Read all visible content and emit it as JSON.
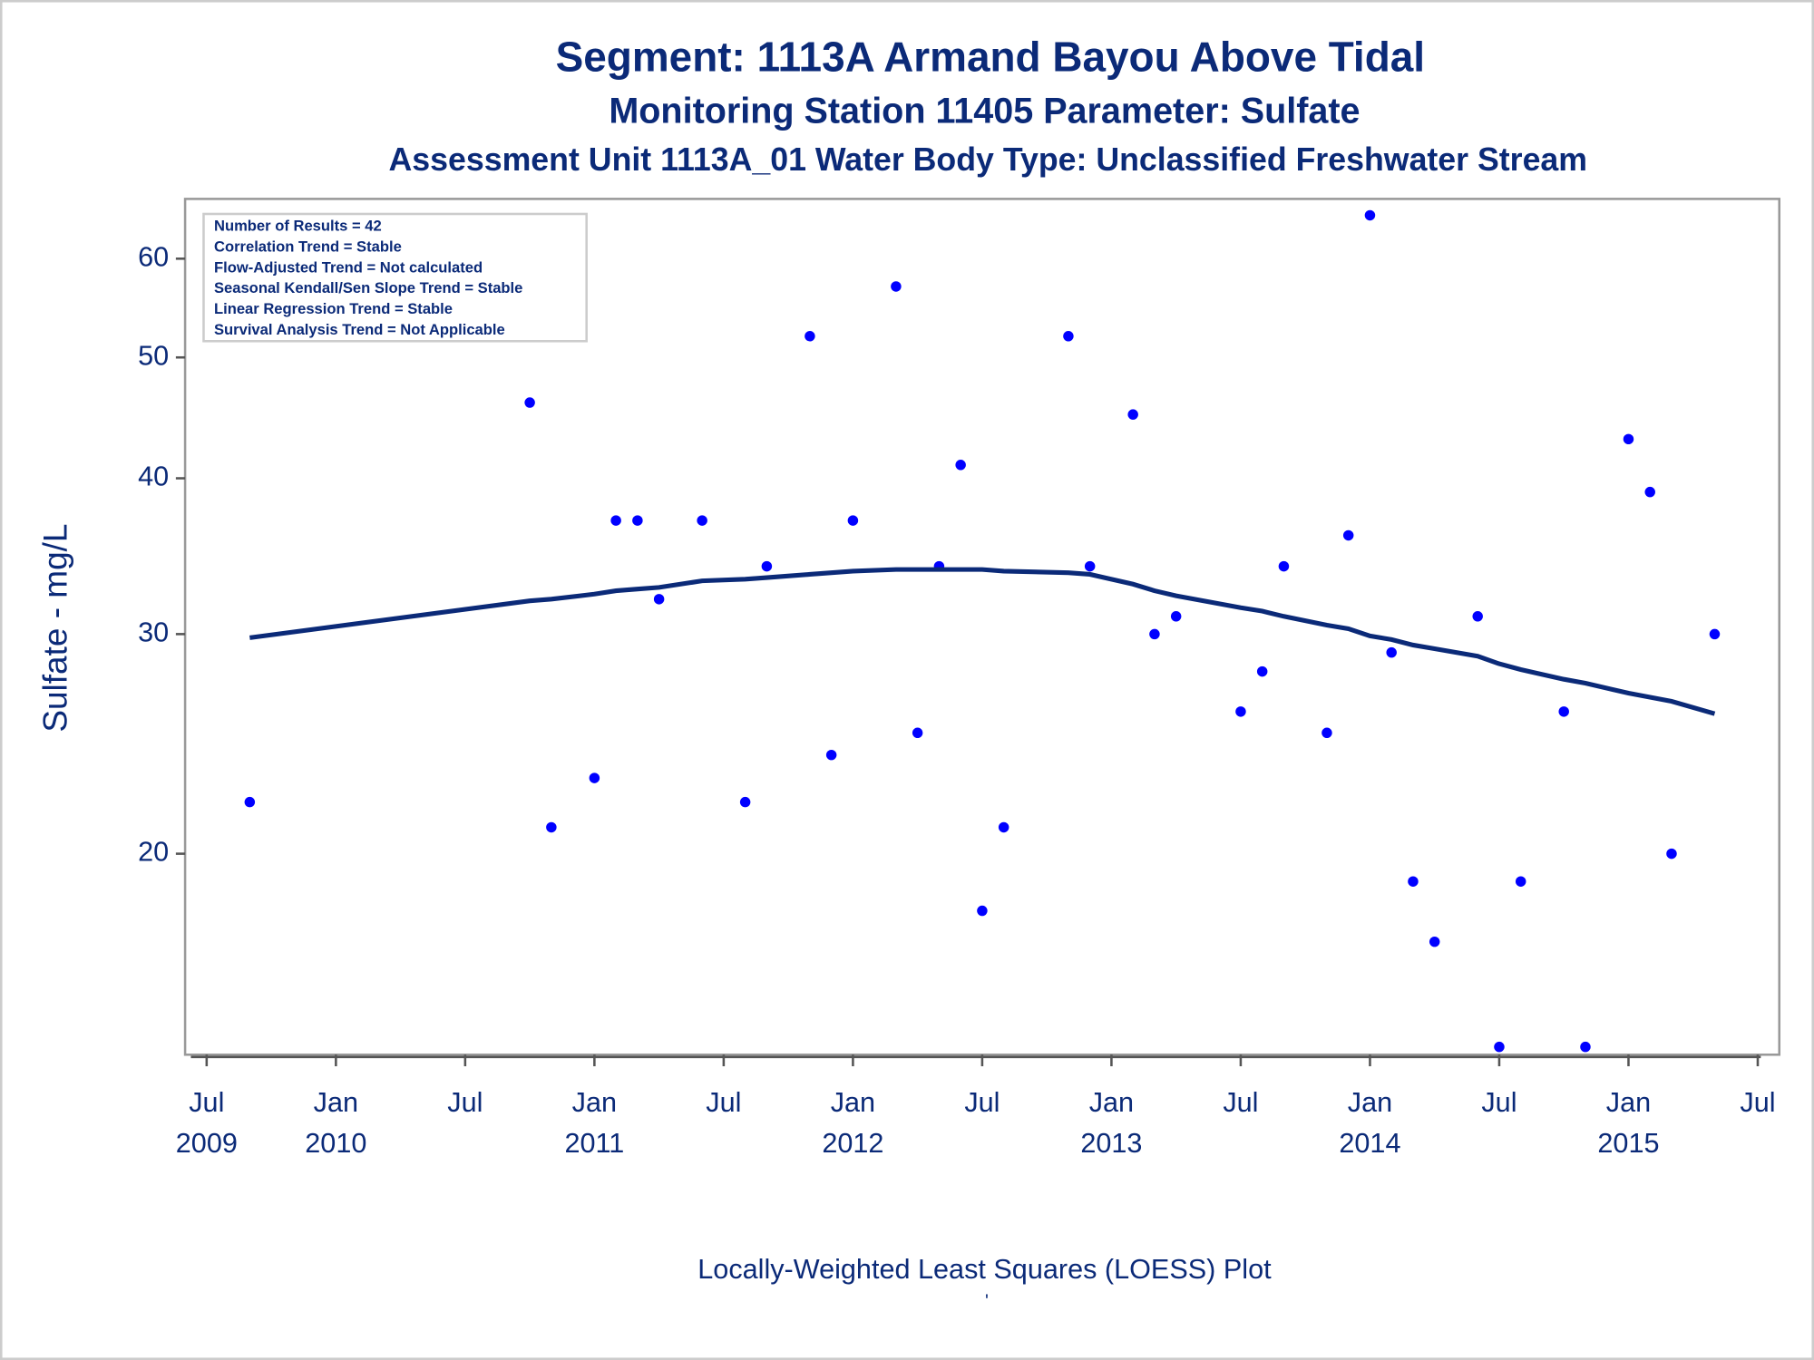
{
  "chart_data": {
    "type": "scatter",
    "title": "Segment: 1113A  Armand Bayou Above Tidal",
    "subtitle": "Monitoring Station 11405 Parameter: Sulfate",
    "subtitle2": "Assessment Unit 1113A_01   Water Body Type: Unclassified Freshwater Stream",
    "ylabel": "Sulfate - mg/L",
    "footnote": "Locally-Weighted Least Squares (LOESS) Plot",
    "footnote2": "'",
    "stats": [
      "Number of Results = 42",
      "Correlation Trend = Stable",
      "Flow-Adjusted Trend = Not calculated",
      "Seasonal Kendall/Sen Slope Trend = Stable",
      "Linear Regression Trend = Stable",
      "Survival Analysis Trend = Not Applicable"
    ],
    "log_y": true,
    "x": [
      "2009-09",
      "2010-10",
      "2010-11",
      "2011-01",
      "2011-02",
      "2011-03",
      "2011-04",
      "2011-06",
      "2011-08",
      "2011-09",
      "2011-11",
      "2011-12",
      "2012-01",
      "2012-03",
      "2012-04",
      "2012-05",
      "2012-06",
      "2012-07",
      "2012-08",
      "2012-11",
      "2012-12",
      "2013-02",
      "2013-03",
      "2013-04",
      "2013-07",
      "2013-08",
      "2013-09",
      "2013-11",
      "2013-12",
      "2014-01",
      "2014-02",
      "2014-03",
      "2014-04",
      "2014-06",
      "2014-07",
      "2014-08",
      "2014-10",
      "2014-11",
      "2015-01",
      "2015-02",
      "2015-03",
      "2015-05"
    ],
    "series": [
      {
        "name": "Sulfate",
        "color": "#0000ff",
        "mode": "markers",
        "values": [
          22,
          46,
          21,
          23,
          37,
          37,
          32,
          37,
          22,
          34,
          52,
          24,
          37,
          57,
          25,
          34,
          41,
          18,
          21,
          52,
          34,
          45,
          30,
          31,
          26,
          28,
          34,
          25,
          36,
          65,
          29,
          19,
          17,
          31,
          14,
          19,
          26,
          14,
          43,
          39,
          20,
          30
        ]
      },
      {
        "name": "LOESS",
        "color": "#0b2a78",
        "mode": "line",
        "values": [
          29.8,
          31.9,
          32.0,
          32.3,
          32.5,
          32.6,
          32.7,
          33.1,
          33.2,
          33.3,
          33.5,
          33.6,
          33.7,
          33.8,
          33.8,
          33.8,
          33.8,
          33.8,
          33.7,
          33.6,
          33.5,
          32.9,
          32.5,
          32.2,
          31.5,
          31.3,
          31.0,
          30.5,
          30.3,
          29.9,
          29.7,
          29.4,
          29.2,
          28.8,
          28.4,
          28.1,
          27.6,
          27.4,
          26.9,
          26.7,
          26.5,
          25.9
        ]
      }
    ],
    "xlim": [
      "2009-06",
      "2015-08"
    ],
    "xticks": [
      {
        "value": "2009-07",
        "label": "Jul",
        "year": "2009"
      },
      {
        "value": "2010-01",
        "label": "Jan",
        "year": "2010"
      },
      {
        "value": "2010-07",
        "label": "Jul"
      },
      {
        "value": "2011-01",
        "label": "Jan",
        "year": "2011"
      },
      {
        "value": "2011-07",
        "label": "Jul"
      },
      {
        "value": "2012-01",
        "label": "Jan",
        "year": "2012"
      },
      {
        "value": "2012-07",
        "label": "Jul"
      },
      {
        "value": "2013-01",
        "label": "Jan",
        "year": "2013"
      },
      {
        "value": "2013-07",
        "label": "Jul"
      },
      {
        "value": "2014-01",
        "label": "Jan",
        "year": "2014"
      },
      {
        "value": "2014-07",
        "label": "Jul"
      },
      {
        "value": "2015-01",
        "label": "Jan",
        "year": "2015"
      },
      {
        "value": "2015-07",
        "label": "Jul"
      }
    ],
    "ylim": [
      13.8,
      67
    ],
    "yticks": [
      20,
      30,
      40,
      50,
      60
    ]
  }
}
